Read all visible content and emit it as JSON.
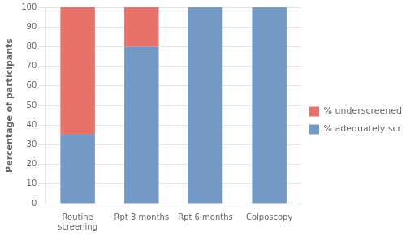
{
  "chart_data": {
    "type": "bar",
    "stacked": true,
    "categories": [
      "Routine\nscreening",
      "Rpt 3 months",
      "Rpt 6 months",
      "Colposcopy"
    ],
    "series": [
      {
        "name": "% adequately screened",
        "color": "#7399C6",
        "values": [
          35,
          80,
          100,
          100
        ]
      },
      {
        "name": "% underscreened",
        "color": "#E8726A",
        "values": [
          65,
          20,
          0,
          0
        ]
      }
    ],
    "ylabel": "Percentage of participants",
    "ylim": [
      0,
      100
    ],
    "yticks": [
      0,
      10,
      20,
      30,
      40,
      50,
      60,
      70,
      80,
      90,
      100
    ],
    "grid": true,
    "legend": "right"
  }
}
